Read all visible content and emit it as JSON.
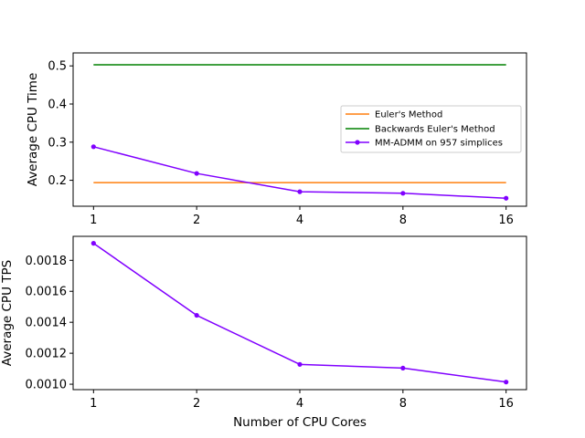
{
  "chart_data": [
    {
      "type": "line",
      "title": "",
      "xlabel": "",
      "ylabel": "Average CPU Time",
      "categories": [
        "1",
        "2",
        "4",
        "8",
        "16"
      ],
      "ylim": [
        0.132,
        0.534
      ],
      "yticks": [
        0.2,
        0.3,
        0.4,
        0.5
      ],
      "ytick_labels": [
        "0.2",
        "0.3",
        "0.4",
        "0.5"
      ],
      "grid": false,
      "legend_position": "center-right",
      "series": [
        {
          "name": "Euler's Method",
          "values": [
            0.194,
            0.194,
            0.194,
            0.194,
            0.194
          ],
          "color": "#ff7f0e",
          "marker": false
        },
        {
          "name": "Backwards Euler's Method",
          "values": [
            0.503,
            0.503,
            0.503,
            0.503,
            0.503
          ],
          "color": "#008000",
          "marker": false
        },
        {
          "name": "MM-ADMM on 957 simplices",
          "values": [
            0.288,
            0.218,
            0.17,
            0.166,
            0.153
          ],
          "color": "#8000ff",
          "marker": true
        }
      ]
    },
    {
      "type": "line",
      "title": "",
      "xlabel": "Number of CPU Cores",
      "ylabel": "Average CPU TPS",
      "categories": [
        "1",
        "2",
        "4",
        "8",
        "16"
      ],
      "ylim": [
        0.000965,
        0.001955
      ],
      "yticks": [
        0.001,
        0.0012,
        0.0014,
        0.0016,
        0.0018
      ],
      "ytick_labels": [
        "0.0010",
        "0.0012",
        "0.0014",
        "0.0016",
        "0.0018"
      ],
      "grid": false,
      "legend_position": "",
      "series": [
        {
          "name": "",
          "values": [
            0.00191,
            0.001445,
            0.001128,
            0.001104,
            0.001014
          ],
          "color": "#8000ff",
          "marker": true
        }
      ]
    }
  ]
}
